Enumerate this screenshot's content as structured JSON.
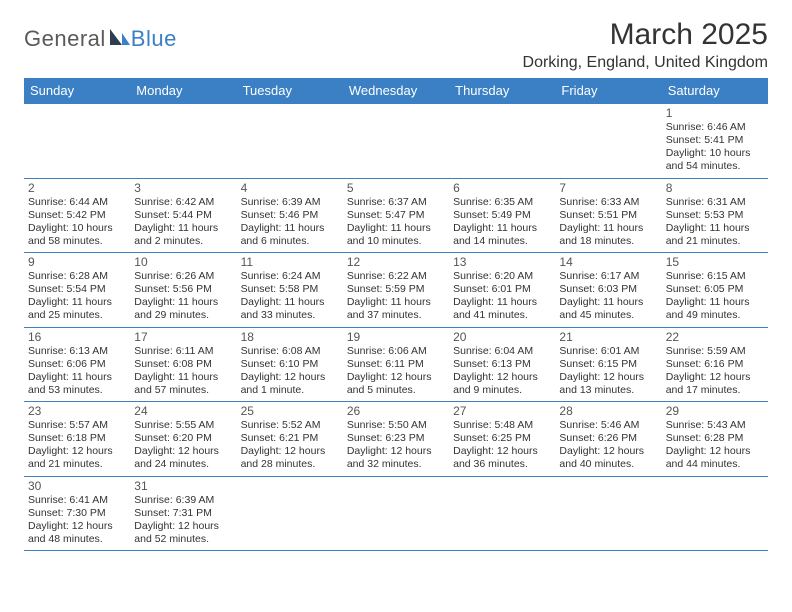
{
  "brand": {
    "part1": "General",
    "part2": "Blue"
  },
  "title": "March 2025",
  "location": "Dorking, England, United Kingdom",
  "colors": {
    "header_bg": "#3b7fc4",
    "header_text": "#ffffff",
    "border": "#3b7fc4",
    "body_text": "#333333",
    "logo_gray": "#5a5a5a",
    "logo_blue": "#3b7fc4",
    "page_bg": "#ffffff"
  },
  "typography": {
    "title_fontsize": 30,
    "location_fontsize": 16,
    "header_fontsize": 13,
    "daynum_fontsize": 12,
    "body_fontsize": 10.5,
    "font_family": "Arial"
  },
  "layout": {
    "columns": 7,
    "rows": 6,
    "first_weekday_index": 6
  },
  "weekdays": [
    "Sunday",
    "Monday",
    "Tuesday",
    "Wednesday",
    "Thursday",
    "Friday",
    "Saturday"
  ],
  "days": [
    {
      "n": 1,
      "sunrise": "6:46 AM",
      "sunset": "5:41 PM",
      "daylight": "10 hours and 54 minutes."
    },
    {
      "n": 2,
      "sunrise": "6:44 AM",
      "sunset": "5:42 PM",
      "daylight": "10 hours and 58 minutes."
    },
    {
      "n": 3,
      "sunrise": "6:42 AM",
      "sunset": "5:44 PM",
      "daylight": "11 hours and 2 minutes."
    },
    {
      "n": 4,
      "sunrise": "6:39 AM",
      "sunset": "5:46 PM",
      "daylight": "11 hours and 6 minutes."
    },
    {
      "n": 5,
      "sunrise": "6:37 AM",
      "sunset": "5:47 PM",
      "daylight": "11 hours and 10 minutes."
    },
    {
      "n": 6,
      "sunrise": "6:35 AM",
      "sunset": "5:49 PM",
      "daylight": "11 hours and 14 minutes."
    },
    {
      "n": 7,
      "sunrise": "6:33 AM",
      "sunset": "5:51 PM",
      "daylight": "11 hours and 18 minutes."
    },
    {
      "n": 8,
      "sunrise": "6:31 AM",
      "sunset": "5:53 PM",
      "daylight": "11 hours and 21 minutes."
    },
    {
      "n": 9,
      "sunrise": "6:28 AM",
      "sunset": "5:54 PM",
      "daylight": "11 hours and 25 minutes."
    },
    {
      "n": 10,
      "sunrise": "6:26 AM",
      "sunset": "5:56 PM",
      "daylight": "11 hours and 29 minutes."
    },
    {
      "n": 11,
      "sunrise": "6:24 AM",
      "sunset": "5:58 PM",
      "daylight": "11 hours and 33 minutes."
    },
    {
      "n": 12,
      "sunrise": "6:22 AM",
      "sunset": "5:59 PM",
      "daylight": "11 hours and 37 minutes."
    },
    {
      "n": 13,
      "sunrise": "6:20 AM",
      "sunset": "6:01 PM",
      "daylight": "11 hours and 41 minutes."
    },
    {
      "n": 14,
      "sunrise": "6:17 AM",
      "sunset": "6:03 PM",
      "daylight": "11 hours and 45 minutes."
    },
    {
      "n": 15,
      "sunrise": "6:15 AM",
      "sunset": "6:05 PM",
      "daylight": "11 hours and 49 minutes."
    },
    {
      "n": 16,
      "sunrise": "6:13 AM",
      "sunset": "6:06 PM",
      "daylight": "11 hours and 53 minutes."
    },
    {
      "n": 17,
      "sunrise": "6:11 AM",
      "sunset": "6:08 PM",
      "daylight": "11 hours and 57 minutes."
    },
    {
      "n": 18,
      "sunrise": "6:08 AM",
      "sunset": "6:10 PM",
      "daylight": "12 hours and 1 minute."
    },
    {
      "n": 19,
      "sunrise": "6:06 AM",
      "sunset": "6:11 PM",
      "daylight": "12 hours and 5 minutes."
    },
    {
      "n": 20,
      "sunrise": "6:04 AM",
      "sunset": "6:13 PM",
      "daylight": "12 hours and 9 minutes."
    },
    {
      "n": 21,
      "sunrise": "6:01 AM",
      "sunset": "6:15 PM",
      "daylight": "12 hours and 13 minutes."
    },
    {
      "n": 22,
      "sunrise": "5:59 AM",
      "sunset": "6:16 PM",
      "daylight": "12 hours and 17 minutes."
    },
    {
      "n": 23,
      "sunrise": "5:57 AM",
      "sunset": "6:18 PM",
      "daylight": "12 hours and 21 minutes."
    },
    {
      "n": 24,
      "sunrise": "5:55 AM",
      "sunset": "6:20 PM",
      "daylight": "12 hours and 24 minutes."
    },
    {
      "n": 25,
      "sunrise": "5:52 AM",
      "sunset": "6:21 PM",
      "daylight": "12 hours and 28 minutes."
    },
    {
      "n": 26,
      "sunrise": "5:50 AM",
      "sunset": "6:23 PM",
      "daylight": "12 hours and 32 minutes."
    },
    {
      "n": 27,
      "sunrise": "5:48 AM",
      "sunset": "6:25 PM",
      "daylight": "12 hours and 36 minutes."
    },
    {
      "n": 28,
      "sunrise": "5:46 AM",
      "sunset": "6:26 PM",
      "daylight": "12 hours and 40 minutes."
    },
    {
      "n": 29,
      "sunrise": "5:43 AM",
      "sunset": "6:28 PM",
      "daylight": "12 hours and 44 minutes."
    },
    {
      "n": 30,
      "sunrise": "6:41 AM",
      "sunset": "7:30 PM",
      "daylight": "12 hours and 48 minutes."
    },
    {
      "n": 31,
      "sunrise": "6:39 AM",
      "sunset": "7:31 PM",
      "daylight": "12 hours and 52 minutes."
    }
  ],
  "labels": {
    "sunrise": "Sunrise:",
    "sunset": "Sunset:",
    "daylight": "Daylight:"
  }
}
